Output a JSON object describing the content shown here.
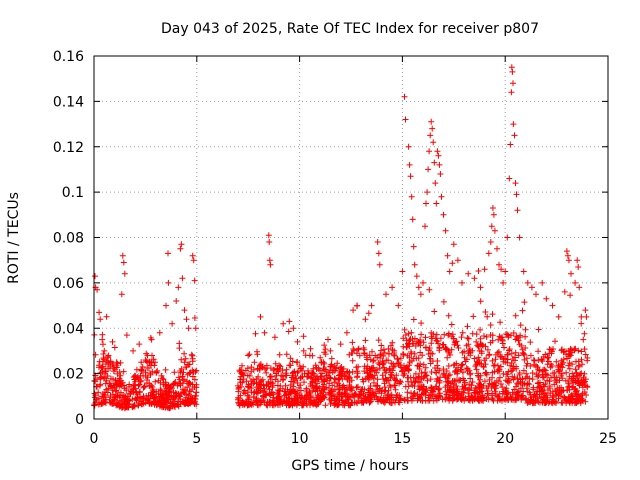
{
  "chart_data": {
    "type": "scatter",
    "title": "Day 043 of 2025, Rate Of TEC Index for receiver p807",
    "xlabel": "GPS time / hours",
    "ylabel": "ROTI / TECUs",
    "xlim": [
      0,
      25
    ],
    "ylim": [
      0,
      0.16
    ],
    "xticks": [
      0,
      5,
      10,
      15,
      20,
      25
    ],
    "xtick_labels": [
      "0",
      "5",
      "10",
      "15",
      "20",
      "25"
    ],
    "yticks": [
      0,
      0.02,
      0.04,
      0.06,
      0.08,
      0.1,
      0.12,
      0.14,
      0.16
    ],
    "ytick_labels": [
      "0",
      "0.02",
      "0.04",
      "0.06",
      "0.08",
      "0.1",
      "0.12",
      "0.14",
      "0.16"
    ],
    "grid": true,
    "marker": "+",
    "color": "#ff0000",
    "data_gaps_hours": [
      [
        5.0,
        7.0
      ]
    ],
    "series": [
      {
        "name": "ROTI",
        "points": [
          [
            0.05,
            0.063
          ],
          [
            0.08,
            0.058
          ],
          [
            0.15,
            0.057
          ],
          [
            0.25,
            0.047
          ],
          [
            0.3,
            0.044
          ],
          [
            0.4,
            0.035
          ],
          [
            0.5,
            0.03
          ],
          [
            0.7,
            0.028
          ],
          [
            0.9,
            0.034
          ],
          [
            1.1,
            0.025
          ],
          [
            1.35,
            0.055
          ],
          [
            1.4,
            0.072
          ],
          [
            1.45,
            0.069
          ],
          [
            1.5,
            0.064
          ],
          [
            1.6,
            0.037
          ],
          [
            1.9,
            0.03
          ],
          [
            2.2,
            0.033
          ],
          [
            2.5,
            0.026
          ],
          [
            2.8,
            0.035
          ],
          [
            3.2,
            0.038
          ],
          [
            3.5,
            0.05
          ],
          [
            3.6,
            0.073
          ],
          [
            3.62,
            0.06
          ],
          [
            3.8,
            0.042
          ],
          [
            4.0,
            0.052
          ],
          [
            4.1,
            0.058
          ],
          [
            4.2,
            0.075
          ],
          [
            4.25,
            0.077
          ],
          [
            4.3,
            0.062
          ],
          [
            4.4,
            0.048
          ],
          [
            4.5,
            0.044
          ],
          [
            4.6,
            0.04
          ],
          [
            4.8,
            0.072
          ],
          [
            4.85,
            0.07
          ],
          [
            4.9,
            0.061
          ],
          [
            4.95,
            0.04
          ],
          [
            7.2,
            0.02
          ],
          [
            7.5,
            0.028
          ],
          [
            7.8,
            0.025
          ],
          [
            8.1,
            0.045
          ],
          [
            8.3,
            0.038
          ],
          [
            8.5,
            0.081
          ],
          [
            8.52,
            0.078
          ],
          [
            8.55,
            0.07
          ],
          [
            8.58,
            0.068
          ],
          [
            8.8,
            0.036
          ],
          [
            9.2,
            0.042
          ],
          [
            9.5,
            0.043
          ],
          [
            9.7,
            0.04
          ],
          [
            9.9,
            0.034
          ],
          [
            10.2,
            0.03
          ],
          [
            10.5,
            0.028
          ],
          [
            11.0,
            0.027
          ],
          [
            11.5,
            0.03
          ],
          [
            12.0,
            0.033
          ],
          [
            12.3,
            0.038
          ],
          [
            12.6,
            0.048
          ],
          [
            12.8,
            0.05
          ],
          [
            13.2,
            0.044
          ],
          [
            13.5,
            0.05
          ],
          [
            13.8,
            0.078
          ],
          [
            13.85,
            0.073
          ],
          [
            13.9,
            0.068
          ],
          [
            14.2,
            0.055
          ],
          [
            14.5,
            0.058
          ],
          [
            14.8,
            0.05
          ],
          [
            15.0,
            0.065
          ],
          [
            15.1,
            0.142
          ],
          [
            15.15,
            0.132
          ],
          [
            15.3,
            0.12
          ],
          [
            15.35,
            0.112
          ],
          [
            15.4,
            0.107
          ],
          [
            15.45,
            0.098
          ],
          [
            15.5,
            0.088
          ],
          [
            15.55,
            0.076
          ],
          [
            15.6,
            0.068
          ],
          [
            15.7,
            0.063
          ],
          [
            15.8,
            0.058
          ],
          [
            15.9,
            0.055
          ],
          [
            16.0,
            0.06
          ],
          [
            16.1,
            0.085
          ],
          [
            16.15,
            0.095
          ],
          [
            16.2,
            0.1
          ],
          [
            16.25,
            0.11
          ],
          [
            16.3,
            0.118
          ],
          [
            16.35,
            0.125
          ],
          [
            16.4,
            0.131
          ],
          [
            16.45,
            0.128
          ],
          [
            16.5,
            0.122
          ],
          [
            16.55,
            0.113
          ],
          [
            16.6,
            0.104
          ],
          [
            16.65,
            0.095
          ],
          [
            16.7,
            0.118
          ],
          [
            16.75,
            0.116
          ],
          [
            16.8,
            0.112
          ],
          [
            16.85,
            0.108
          ],
          [
            16.9,
            0.098
          ],
          [
            17.0,
            0.09
          ],
          [
            17.1,
            0.083
          ],
          [
            17.2,
            0.072
          ],
          [
            17.3,
            0.065
          ],
          [
            17.5,
            0.077
          ],
          [
            17.7,
            0.07
          ],
          [
            17.9,
            0.06
          ],
          [
            18.2,
            0.064
          ],
          [
            18.5,
            0.062
          ],
          [
            18.8,
            0.058
          ],
          [
            19.0,
            0.066
          ],
          [
            19.2,
            0.073
          ],
          [
            19.3,
            0.078
          ],
          [
            19.35,
            0.085
          ],
          [
            19.4,
            0.093
          ],
          [
            19.45,
            0.09
          ],
          [
            19.5,
            0.083
          ],
          [
            19.6,
            0.075
          ],
          [
            19.7,
            0.068
          ],
          [
            19.8,
            0.066
          ],
          [
            19.9,
            0.06
          ],
          [
            20.0,
            0.065
          ],
          [
            20.1,
            0.08
          ],
          [
            20.2,
            0.106
          ],
          [
            20.25,
            0.121
          ],
          [
            20.3,
            0.144
          ],
          [
            20.32,
            0.155
          ],
          [
            20.35,
            0.153
          ],
          [
            20.38,
            0.148
          ],
          [
            20.4,
            0.13
          ],
          [
            20.45,
            0.125
          ],
          [
            20.5,
            0.104
          ],
          [
            20.55,
            0.099
          ],
          [
            20.6,
            0.092
          ],
          [
            20.7,
            0.08
          ],
          [
            20.9,
            0.065
          ],
          [
            21.1,
            0.06
          ],
          [
            21.3,
            0.058
          ],
          [
            21.5,
            0.055
          ],
          [
            21.8,
            0.06
          ],
          [
            22.0,
            0.053
          ],
          [
            22.3,
            0.05
          ],
          [
            22.6,
            0.045
          ],
          [
            22.9,
            0.056
          ],
          [
            23.0,
            0.074
          ],
          [
            23.05,
            0.072
          ],
          [
            23.1,
            0.07
          ],
          [
            23.2,
            0.064
          ],
          [
            23.4,
            0.06
          ],
          [
            23.5,
            0.07
          ],
          [
            23.55,
            0.067
          ],
          [
            23.6,
            0.058
          ],
          [
            23.7,
            0.045
          ],
          [
            23.8,
            0.035
          ],
          [
            23.9,
            0.048
          ],
          [
            23.95,
            0.045
          ]
        ]
      }
    ]
  }
}
